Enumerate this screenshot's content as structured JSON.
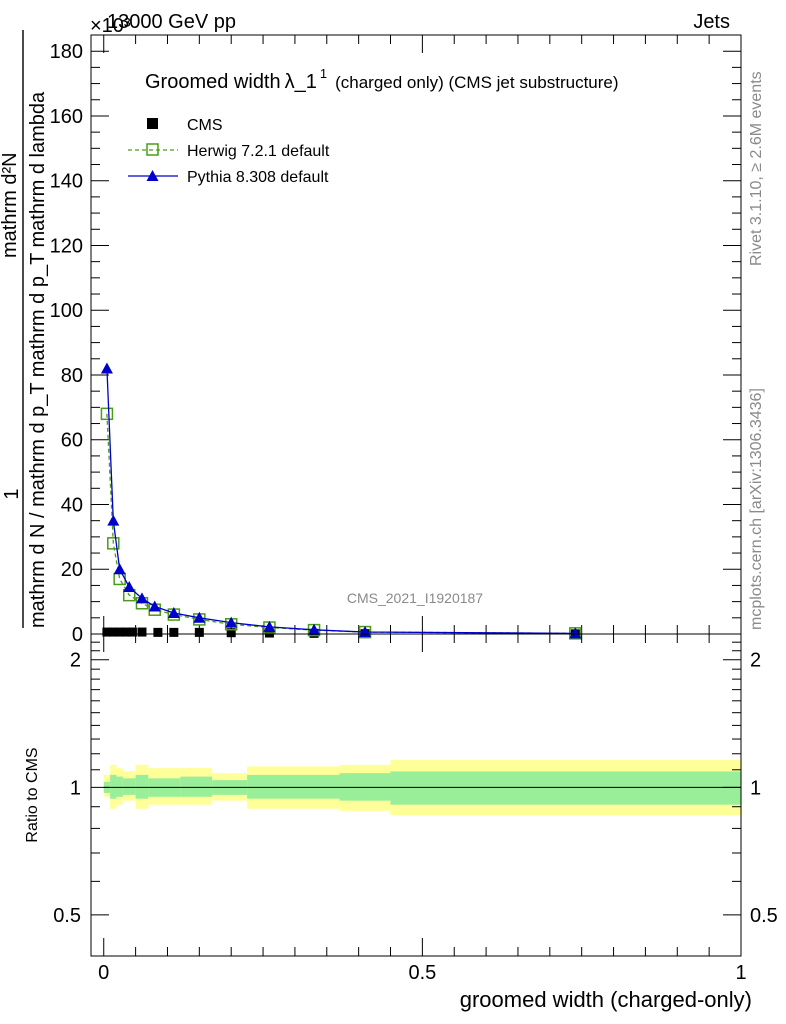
{
  "header": {
    "scale_label": "×10³",
    "energy_label": "13000 GeV pp",
    "category_label": "Jets"
  },
  "side_labels": {
    "rivet": "Rivet 3.1.10, ≥ 2.6M events",
    "mcplots": "mcplots.cern.ch [arXiv:1306.3436]"
  },
  "chart_data": [
    {
      "type": "line",
      "title": "Groomed width",
      "title_symbol": "λ_1",
      "title_sup": "1",
      "title_suffix": "(charged only) (CMS jet substructure)",
      "watermark": "CMS_2021_I1920187",
      "ylabel_numerator": "1",
      "ylabel_denominator": "mathrm d N / mathrm d p_T mathrm d p_T mathrm d lambda",
      "ylabel_top": "mathrm d²N",
      "ylim": [
        0,
        185
      ],
      "yticks": [
        0,
        20,
        40,
        60,
        80,
        100,
        120,
        140,
        160,
        180
      ],
      "xlim": [
        -0.02,
        1.0
      ],
      "legend": "top-left",
      "series": [
        {
          "name": "CMS",
          "color": "#000000",
          "marker": "square",
          "x": [
            0.005,
            0.015,
            0.025,
            0.035,
            0.045,
            0.06,
            0.085,
            0.11,
            0.15,
            0.2,
            0.26,
            0.33,
            0.41,
            0.74
          ],
          "y": [
            0.6,
            0.6,
            0.6,
            0.6,
            0.6,
            0.6,
            0.5,
            0.5,
            0.5,
            0.4,
            0.3,
            0.2,
            0.1,
            0.05
          ]
        },
        {
          "name": "Herwig 7.2.1 default",
          "color": "#4a9b1a",
          "marker": "open-square",
          "dashed": true,
          "x": [
            0.005,
            0.015,
            0.025,
            0.04,
            0.06,
            0.08,
            0.11,
            0.15,
            0.2,
            0.26,
            0.33,
            0.41,
            0.74
          ],
          "y": [
            68,
            28,
            17,
            12,
            9.5,
            7.5,
            6,
            4.5,
            3,
            2,
            1.2,
            0.6,
            0.2
          ]
        },
        {
          "name": "Pythia 8.308 default",
          "color": "#0000cc",
          "marker": "triangle",
          "x": [
            0.005,
            0.015,
            0.025,
            0.04,
            0.06,
            0.08,
            0.11,
            0.15,
            0.2,
            0.26,
            0.33,
            0.41,
            0.74
          ],
          "y": [
            82,
            35,
            20,
            14.5,
            11,
            8.5,
            6.5,
            5,
            3.5,
            2.2,
            1.3,
            0.6,
            0.2
          ]
        }
      ]
    },
    {
      "type": "area",
      "ylabel": "Ratio to CMS",
      "xlabel": "groomed width (charged-only)",
      "xlim": [
        -0.02,
        1.0
      ],
      "ylim": [
        0.4,
        2.3
      ],
      "log_y": true,
      "yticks": [
        0.5,
        1,
        2
      ],
      "xticks": [
        0,
        0.5,
        1
      ],
      "xtick_labels": [
        "0",
        "0.5",
        "1"
      ],
      "ytick_labels": [
        "0.5",
        "1",
        "2"
      ],
      "bins": [
        {
          "x0": 0.0,
          "x1": 0.01,
          "stat_lo": 0.97,
          "stat_hi": 1.03,
          "tot_lo": 0.95,
          "tot_hi": 1.07
        },
        {
          "x0": 0.01,
          "x1": 0.02,
          "stat_lo": 0.94,
          "stat_hi": 1.07,
          "tot_lo": 0.89,
          "tot_hi": 1.13
        },
        {
          "x0": 0.02,
          "x1": 0.03,
          "stat_lo": 0.95,
          "stat_hi": 1.06,
          "tot_lo": 0.91,
          "tot_hi": 1.11
        },
        {
          "x0": 0.03,
          "x1": 0.05,
          "stat_lo": 0.96,
          "stat_hi": 1.05,
          "tot_lo": 0.93,
          "tot_hi": 1.09
        },
        {
          "x0": 0.05,
          "x1": 0.07,
          "stat_lo": 0.94,
          "stat_hi": 1.07,
          "tot_lo": 0.89,
          "tot_hi": 1.13
        },
        {
          "x0": 0.07,
          "x1": 0.12,
          "stat_lo": 0.95,
          "stat_hi": 1.05,
          "tot_lo": 0.91,
          "tot_hi": 1.11
        },
        {
          "x0": 0.12,
          "x1": 0.17,
          "stat_lo": 0.95,
          "stat_hi": 1.06,
          "tot_lo": 0.91,
          "tot_hi": 1.11
        },
        {
          "x0": 0.17,
          "x1": 0.225,
          "stat_lo": 0.96,
          "stat_hi": 1.04,
          "tot_lo": 0.93,
          "tot_hi": 1.08
        },
        {
          "x0": 0.225,
          "x1": 0.37,
          "stat_lo": 0.94,
          "stat_hi": 1.07,
          "tot_lo": 0.89,
          "tot_hi": 1.12
        },
        {
          "x0": 0.37,
          "x1": 0.45,
          "stat_lo": 0.93,
          "stat_hi": 1.08,
          "tot_lo": 0.88,
          "tot_hi": 1.13
        },
        {
          "x0": 0.45,
          "x1": 1.0,
          "stat_lo": 0.91,
          "stat_hi": 1.09,
          "tot_lo": 0.86,
          "tot_hi": 1.16
        }
      ],
      "colors": {
        "stat": "#99ee99",
        "total": "#ffff99"
      }
    }
  ]
}
